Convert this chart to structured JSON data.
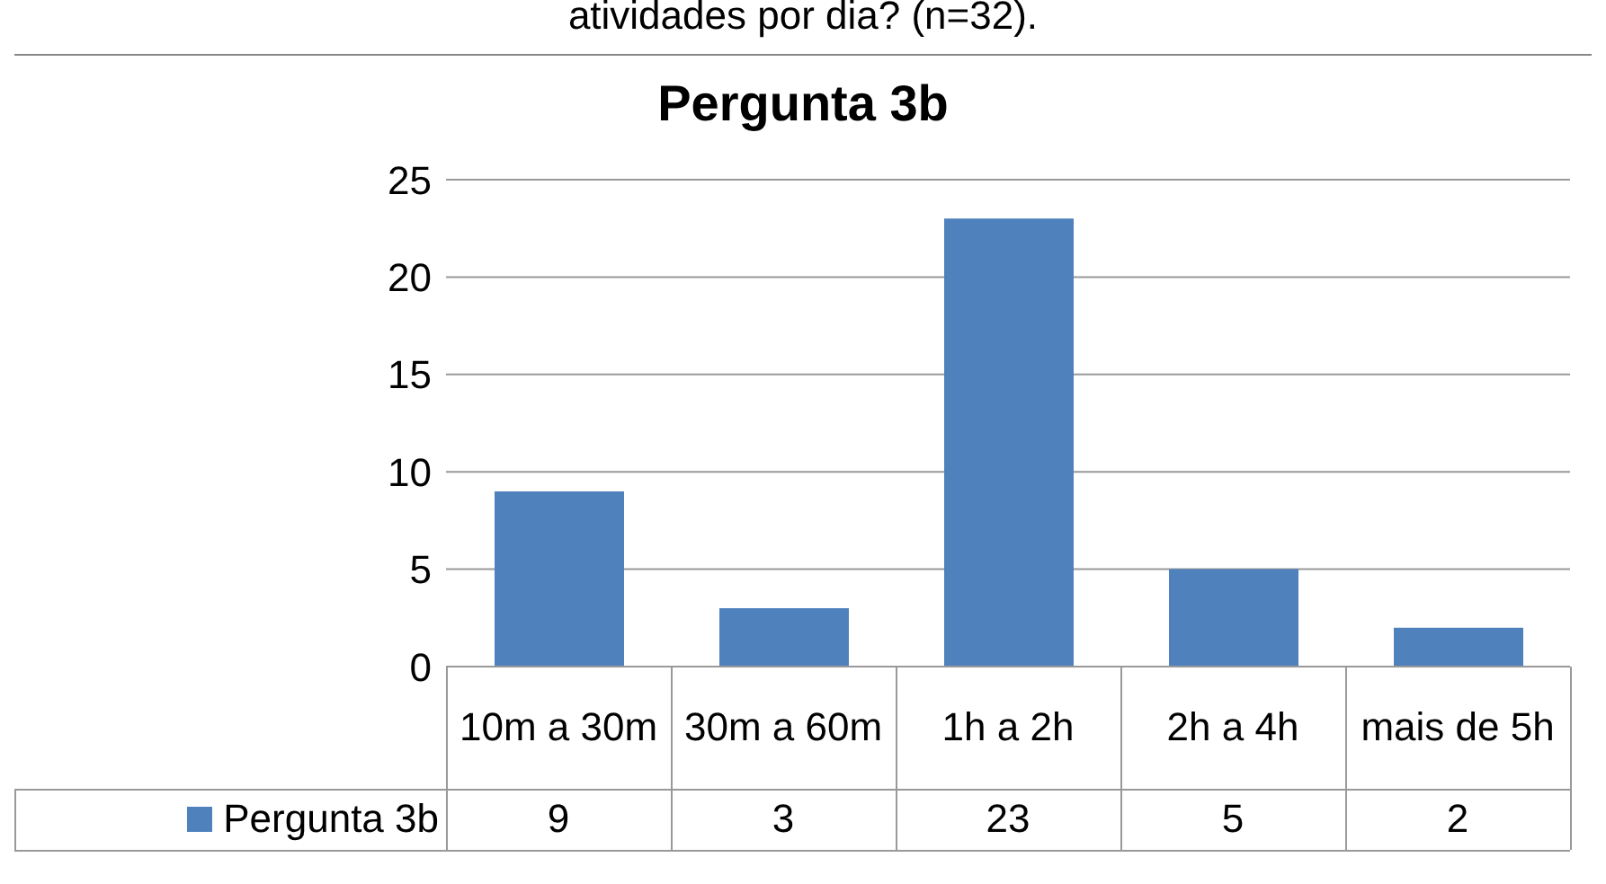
{
  "chart_data": {
    "type": "bar",
    "title": "Pergunta 3b",
    "annotations": [
      "atividades por dia? (n=32)."
    ],
    "categories": [
      "10m a 30m",
      "30m a 60m",
      "1h a 2h",
      "2h a 4h",
      "mais de 5h"
    ],
    "series": [
      {
        "name": "Pergunta 3b",
        "color": "#4f81bd",
        "values": [
          9,
          3,
          23,
          5,
          2
        ]
      }
    ],
    "ylim": [
      0,
      25
    ],
    "yticks": [
      0,
      5,
      10,
      15,
      20,
      25
    ],
    "grid": "y",
    "legend": "bottom",
    "data_labels": true
  }
}
